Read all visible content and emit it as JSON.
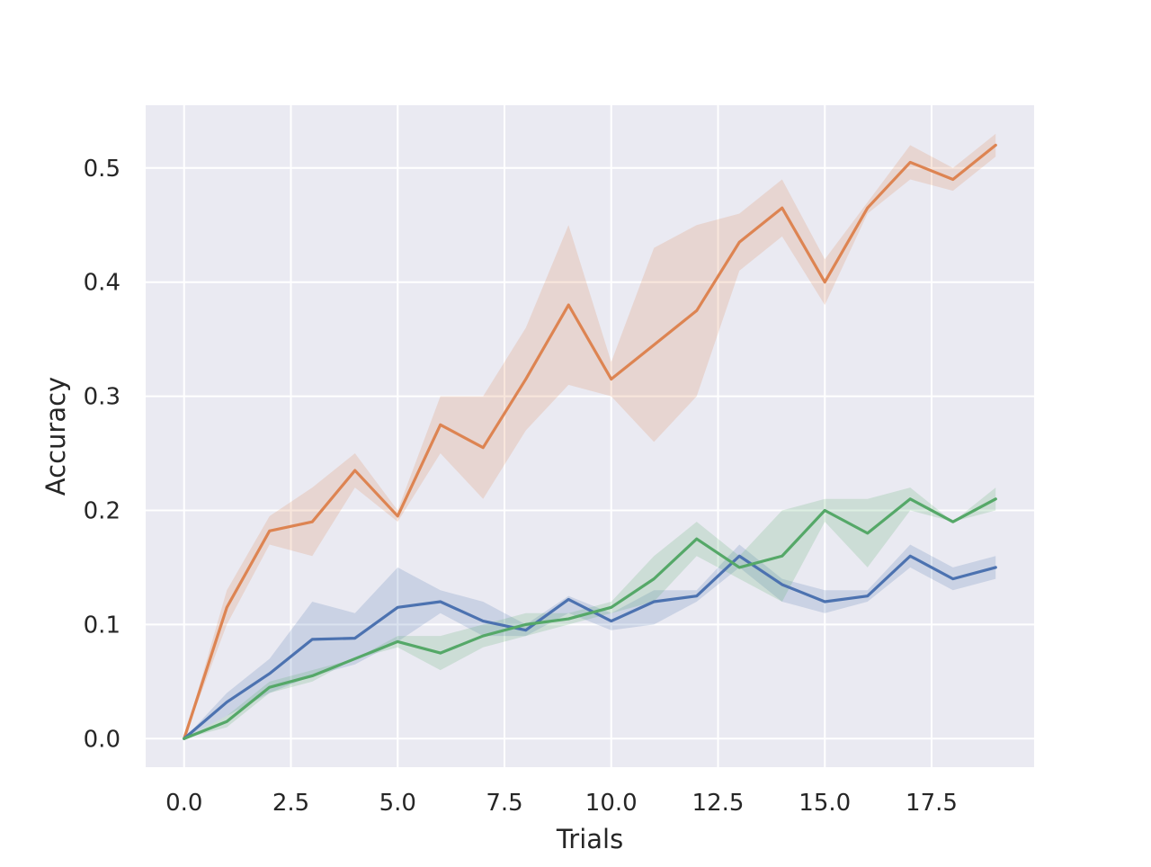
{
  "chart_data": {
    "type": "line",
    "title": "",
    "xlabel": "Trials",
    "ylabel": "Accuracy",
    "xlim": [
      -0.9,
      19.9
    ],
    "ylim": [
      -0.025,
      0.555
    ],
    "grid": true,
    "legend": "none",
    "x_ticks": [
      0,
      2.5,
      5,
      7.5,
      10,
      12.5,
      15,
      17.5
    ],
    "x_tick_labels": [
      "0.0",
      "2.5",
      "5.0",
      "7.5",
      "10.0",
      "12.5",
      "15.0",
      "17.5"
    ],
    "y_ticks": [
      0,
      0.1,
      0.2,
      0.3,
      0.4,
      0.5
    ],
    "y_tick_labels": [
      "0.0",
      "0.1",
      "0.2",
      "0.3",
      "0.4",
      "0.5"
    ],
    "x": [
      0,
      1,
      2,
      3,
      4,
      5,
      6,
      7,
      8,
      9,
      10,
      11,
      12,
      13,
      14,
      15,
      16,
      17,
      18,
      19
    ],
    "colors": {
      "background": "#eaeaf2",
      "grid": "#ffffff",
      "blue": "#4c72b0",
      "orange": "#dd8452",
      "green": "#55a868"
    },
    "series": [
      {
        "color": "#dd8452",
        "values": [
          0.0,
          0.115,
          0.182,
          0.19,
          0.235,
          0.195,
          0.275,
          0.255,
          0.315,
          0.38,
          0.315,
          0.345,
          0.375,
          0.435,
          0.465,
          0.4,
          0.465,
          0.505,
          0.49,
          0.52
        ],
        "lower": [
          0.0,
          0.1,
          0.17,
          0.16,
          0.22,
          0.19,
          0.25,
          0.21,
          0.27,
          0.31,
          0.3,
          0.26,
          0.3,
          0.41,
          0.44,
          0.38,
          0.46,
          0.49,
          0.48,
          0.51
        ],
        "upper": [
          0.0,
          0.13,
          0.195,
          0.22,
          0.25,
          0.2,
          0.3,
          0.3,
          0.36,
          0.45,
          0.33,
          0.43,
          0.45,
          0.46,
          0.49,
          0.42,
          0.47,
          0.52,
          0.5,
          0.53
        ]
      },
      {
        "color": "#4c72b0",
        "values": [
          0.0,
          0.032,
          0.057,
          0.087,
          0.088,
          0.115,
          0.12,
          0.103,
          0.095,
          0.122,
          0.103,
          0.12,
          0.125,
          0.16,
          0.135,
          0.12,
          0.125,
          0.16,
          0.14,
          0.15
        ],
        "lower": [
          0.0,
          0.02,
          0.04,
          0.055,
          0.065,
          0.085,
          0.11,
          0.09,
          0.09,
          0.11,
          0.095,
          0.1,
          0.12,
          0.15,
          0.12,
          0.11,
          0.12,
          0.15,
          0.13,
          0.14
        ],
        "upper": [
          0.0,
          0.04,
          0.07,
          0.12,
          0.11,
          0.15,
          0.13,
          0.12,
          0.1,
          0.125,
          0.11,
          0.13,
          0.13,
          0.17,
          0.14,
          0.13,
          0.13,
          0.17,
          0.15,
          0.16
        ]
      },
      {
        "color": "#55a868",
        "values": [
          0.0,
          0.015,
          0.045,
          0.055,
          0.07,
          0.085,
          0.075,
          0.09,
          0.1,
          0.105,
          0.115,
          0.14,
          0.175,
          0.15,
          0.16,
          0.2,
          0.18,
          0.21,
          0.19,
          0.21
        ],
        "lower": [
          0.0,
          0.01,
          0.04,
          0.05,
          0.07,
          0.08,
          0.06,
          0.08,
          0.09,
          0.1,
          0.11,
          0.12,
          0.16,
          0.14,
          0.12,
          0.19,
          0.15,
          0.2,
          0.19,
          0.2
        ],
        "upper": [
          0.0,
          0.02,
          0.05,
          0.06,
          0.07,
          0.09,
          0.09,
          0.1,
          0.11,
          0.11,
          0.12,
          0.16,
          0.19,
          0.16,
          0.2,
          0.21,
          0.21,
          0.22,
          0.19,
          0.22
        ]
      }
    ]
  }
}
